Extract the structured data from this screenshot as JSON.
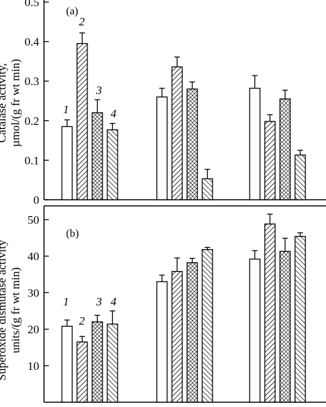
{
  "chart_data": [
    {
      "type": "bar",
      "panel_label": "(a)",
      "ylabel_line1": "Catalase activity,",
      "ylabel_line2": "µmol/(g fr wt min)",
      "ylim": [
        0,
        0.5
      ],
      "yticks": [
        "0",
        "0.1",
        "0.2",
        "0.3",
        "0.4",
        "0.5"
      ],
      "groups": 3,
      "series": [
        {
          "name": "1",
          "values": [
            0.185,
            0.26,
            0.282
          ],
          "errors": [
            0.017,
            0.022,
            0.032
          ]
        },
        {
          "name": "2",
          "values": [
            0.395,
            0.336,
            0.198
          ],
          "errors": [
            0.027,
            0.025,
            0.017
          ]
        },
        {
          "name": "3",
          "values": [
            0.22,
            0.28,
            0.255
          ],
          "errors": [
            0.033,
            0.018,
            0.022
          ]
        },
        {
          "name": "4",
          "values": [
            0.177,
            0.053,
            0.113
          ],
          "errors": [
            0.016,
            0.024,
            0.012
          ]
        }
      ],
      "series_labels": [
        "1",
        "2",
        "3",
        "4"
      ]
    },
    {
      "type": "bar",
      "panel_label": "(b)",
      "ylabel_line1": "Superoxide dismutase activity",
      "ylabel_line2": "units/(g fr wt min)",
      "ylim": [
        0,
        50
      ],
      "yticks": [
        "10",
        "20",
        "30",
        "40",
        "50"
      ],
      "groups": 3,
      "series": [
        {
          "name": "1",
          "values": [
            20.8,
            33.0,
            39.2
          ],
          "errors": [
            1.7,
            1.8,
            2.3
          ]
        },
        {
          "name": "2",
          "values": [
            16.5,
            35.8,
            48.8
          ],
          "errors": [
            1.5,
            3.7,
            2.7
          ]
        },
        {
          "name": "3",
          "values": [
            22.0,
            38.2,
            41.3
          ],
          "errors": [
            1.8,
            1.2,
            3.6
          ]
        },
        {
          "name": "4",
          "values": [
            21.4,
            41.8,
            45.4
          ],
          "errors": [
            3.6,
            0.6,
            1.0
          ]
        }
      ],
      "series_labels": [
        "1",
        "2",
        "3",
        "4"
      ]
    }
  ]
}
